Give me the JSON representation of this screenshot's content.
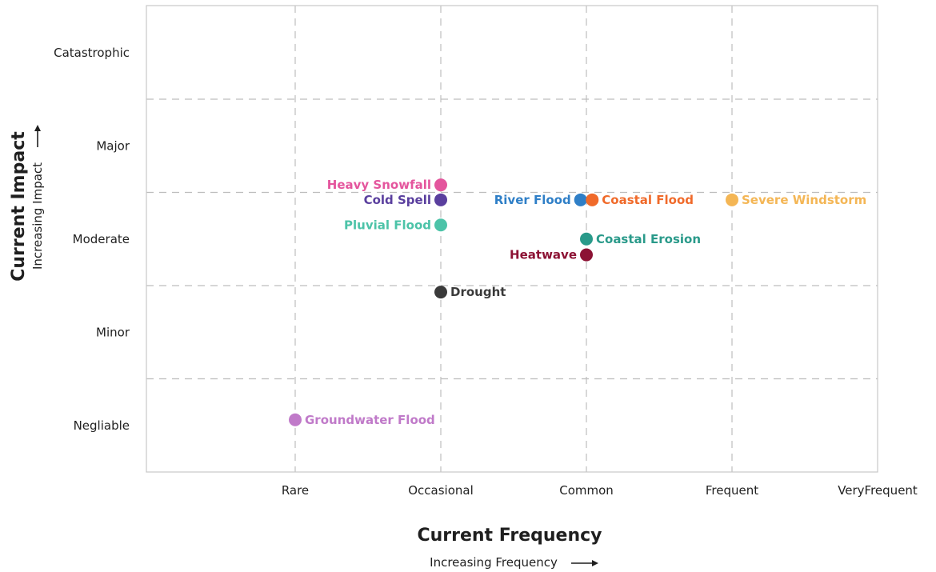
{
  "chart_data": {
    "type": "scatter",
    "title": "",
    "xlabel": "Current Frequency",
    "xlabel_sub": "Increasing Frequency",
    "ylabel": "Current Impact",
    "ylabel_sub": "Increasing Impact",
    "x_categories": [
      "Rare",
      "Occasional",
      "Common",
      "Frequent",
      "VeryFrequent"
    ],
    "y_categories": [
      "Negliable",
      "Minor",
      "Moderate",
      "Major",
      "Catastrophic"
    ],
    "xlim": [
      0,
      5
    ],
    "ylim": [
      0,
      5
    ],
    "grid": true,
    "grid_style": "dashed",
    "points": [
      {
        "label": "Heavy Snowfall",
        "x": 2.0,
        "y": 3.08,
        "color": "#e4559d",
        "label_side": "left"
      },
      {
        "label": "Cold Spell",
        "x": 2.0,
        "y": 2.92,
        "color": "#5a3f9e",
        "label_side": "left"
      },
      {
        "label": "Pluvial Flood",
        "x": 2.0,
        "y": 2.65,
        "color": "#4cc3a8",
        "label_side": "left"
      },
      {
        "label": "River Flood",
        "x": 2.96,
        "y": 2.92,
        "color": "#2f7fc7",
        "label_side": "left"
      },
      {
        "label": "Coastal Flood",
        "x": 3.04,
        "y": 2.92,
        "color": "#f06a2a",
        "label_side": "right"
      },
      {
        "label": "Severe Windstorm",
        "x": 4.0,
        "y": 2.92,
        "color": "#f4b655",
        "label_side": "right"
      },
      {
        "label": "Coastal Erosion",
        "x": 3.0,
        "y": 2.5,
        "color": "#2a9a8a",
        "label_side": "right"
      },
      {
        "label": "Heatwave",
        "x": 3.0,
        "y": 2.33,
        "color": "#8c1234",
        "label_side": "left"
      },
      {
        "label": "Drought",
        "x": 2.0,
        "y": 1.93,
        "color": "#3a3a3a",
        "label_side": "right"
      },
      {
        "label": "Groundwater Flood",
        "x": 1.0,
        "y": 0.56,
        "color": "#c07ac9",
        "label_side": "right"
      }
    ]
  }
}
